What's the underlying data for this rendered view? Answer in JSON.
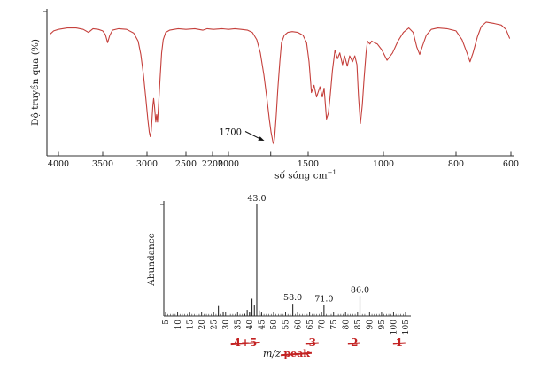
{
  "chart_data": [
    {
      "type": "line",
      "name": "ir-spectrum",
      "ylabel": "Độ truyền qua (%)",
      "xlabel": "số sóng cm",
      "xlabel_sup": "−1",
      "line_color": "#c5403c",
      "axis_color": "#333333",
      "xlim": [
        4100,
        600
      ],
      "ylim": [
        0,
        100
      ],
      "grid": false,
      "annotation": {
        "text": "1700"
      },
      "x_ticks": [
        {
          "v": 4000,
          "label": "4000"
        },
        {
          "v": 3500,
          "label": "3500"
        },
        {
          "v": 3000,
          "label": "3000"
        },
        {
          "v": 2500,
          "label": "2500"
        },
        {
          "v": 2200,
          "label": "2200"
        },
        {
          "v": 2000,
          "label": "2000"
        },
        {
          "v": 1735,
          "label": ""
        },
        {
          "v": 1500,
          "label": "1500"
        },
        {
          "v": 1000,
          "label": "1000"
        },
        {
          "v": 800,
          "label": "800"
        },
        {
          "v": 600,
          "label": "600"
        }
      ],
      "x_map": [
        [
          4100,
          57
        ],
        [
          4000,
          66
        ],
        [
          3500,
          116
        ],
        [
          3000,
          166
        ],
        [
          2500,
          210
        ],
        [
          2200,
          240
        ],
        [
          2000,
          258
        ],
        [
          1500,
          348
        ],
        [
          1000,
          433
        ],
        [
          800,
          515
        ],
        [
          600,
          577
        ]
      ],
      "points": [
        [
          4100,
          83
        ],
        [
          4060,
          85
        ],
        [
          4000,
          86
        ],
        [
          3900,
          87
        ],
        [
          3800,
          87
        ],
        [
          3720,
          86
        ],
        [
          3660,
          84
        ],
        [
          3610,
          86.5
        ],
        [
          3550,
          86
        ],
        [
          3500,
          85
        ],
        [
          3470,
          82.5
        ],
        [
          3445,
          77
        ],
        [
          3420,
          82
        ],
        [
          3390,
          85.5
        ],
        [
          3320,
          86.5
        ],
        [
          3230,
          86
        ],
        [
          3150,
          83.5
        ],
        [
          3100,
          78
        ],
        [
          3070,
          69
        ],
        [
          3040,
          55
        ],
        [
          3010,
          37
        ],
        [
          2990,
          25
        ],
        [
          2970,
          16
        ],
        [
          2958,
          13
        ],
        [
          2945,
          17
        ],
        [
          2925,
          34
        ],
        [
          2915,
          39
        ],
        [
          2905,
          34
        ],
        [
          2888,
          23
        ],
        [
          2876,
          28
        ],
        [
          2865,
          23
        ],
        [
          2852,
          34
        ],
        [
          2833,
          52
        ],
        [
          2813,
          70
        ],
        [
          2792,
          79
        ],
        [
          2760,
          84
        ],
        [
          2710,
          85.5
        ],
        [
          2600,
          86.5
        ],
        [
          2500,
          86
        ],
        [
          2400,
          86.5
        ],
        [
          2310,
          85.5
        ],
        [
          2260,
          86.5
        ],
        [
          2190,
          86
        ],
        [
          2080,
          86.5
        ],
        [
          2000,
          86
        ],
        [
          1960,
          86.5
        ],
        [
          1920,
          86
        ],
        [
          1880,
          85.5
        ],
        [
          1850,
          84
        ],
        [
          1822,
          79
        ],
        [
          1800,
          70
        ],
        [
          1778,
          55
        ],
        [
          1760,
          40
        ],
        [
          1744,
          25
        ],
        [
          1733,
          16
        ],
        [
          1722,
          10
        ],
        [
          1716,
          8
        ],
        [
          1710,
          13
        ],
        [
          1700,
          28
        ],
        [
          1690,
          46
        ],
        [
          1678,
          64
        ],
        [
          1667,
          77
        ],
        [
          1650,
          82
        ],
        [
          1628,
          84
        ],
        [
          1600,
          84.5
        ],
        [
          1565,
          84
        ],
        [
          1532,
          82
        ],
        [
          1510,
          77
        ],
        [
          1494,
          64
        ],
        [
          1478,
          43
        ],
        [
          1461,
          48
        ],
        [
          1444,
          40
        ],
        [
          1422,
          47
        ],
        [
          1406,
          40
        ],
        [
          1394,
          46
        ],
        [
          1378,
          25
        ],
        [
          1366,
          29
        ],
        [
          1355,
          39
        ],
        [
          1339,
          58
        ],
        [
          1322,
          72
        ],
        [
          1305,
          66
        ],
        [
          1290,
          70
        ],
        [
          1272,
          62
        ],
        [
          1258,
          68
        ],
        [
          1240,
          61
        ],
        [
          1224,
          68
        ],
        [
          1205,
          64
        ],
        [
          1190,
          68
        ],
        [
          1176,
          62
        ],
        [
          1165,
          40
        ],
        [
          1153,
          22
        ],
        [
          1140,
          35
        ],
        [
          1129,
          52
        ],
        [
          1115,
          70
        ],
        [
          1106,
          78
        ],
        [
          1090,
          76
        ],
        [
          1078,
          78
        ],
        [
          1060,
          77
        ],
        [
          1040,
          76
        ],
        [
          1010,
          72
        ],
        [
          990,
          65
        ],
        [
          975,
          70
        ],
        [
          960,
          78
        ],
        [
          945,
          84
        ],
        [
          930,
          87
        ],
        [
          918,
          84
        ],
        [
          908,
          74
        ],
        [
          900,
          69
        ],
        [
          892,
          75
        ],
        [
          882,
          82
        ],
        [
          868,
          86
        ],
        [
          850,
          87
        ],
        [
          825,
          86.5
        ],
        [
          800,
          85
        ],
        [
          778,
          79
        ],
        [
          760,
          70
        ],
        [
          749,
          64
        ],
        [
          738,
          70
        ],
        [
          722,
          81
        ],
        [
          708,
          88
        ],
        [
          690,
          91
        ],
        [
          660,
          90
        ],
        [
          635,
          89
        ],
        [
          618,
          86
        ],
        [
          605,
          80
        ]
      ]
    },
    {
      "type": "bar",
      "name": "mass-spectrum",
      "ylabel": "Abundance",
      "xlabel": "m/z",
      "xlabel_struck": "peak",
      "bar_color": "#2a2a2a",
      "axis_color": "#333333",
      "annotation_color": "#c32222",
      "x_axis": {
        "start": 5,
        "end": 105,
        "major_step": 5,
        "minor_step": 1
      },
      "ylim": [
        0,
        100
      ],
      "grid": false,
      "peaks": [
        [
          15,
          2.5
        ],
        [
          27,
          9
        ],
        [
          29,
          4
        ],
        [
          38,
          2
        ],
        [
          39,
          5.5
        ],
        [
          40,
          3
        ],
        [
          41,
          15.5
        ],
        [
          42,
          9.5
        ],
        [
          43,
          100
        ],
        [
          44,
          5
        ],
        [
          45,
          2
        ],
        [
          58,
          11
        ],
        [
          71,
          10
        ],
        [
          86,
          18
        ]
      ],
      "peak_labels": [
        {
          "m": 43,
          "text": "43.0"
        },
        {
          "m": 58,
          "text": "58.0"
        },
        {
          "m": 71,
          "text": "71.0"
        },
        {
          "m": 86,
          "text": "86.0"
        }
      ],
      "red_marks": [
        {
          "text": "4+5"
        },
        {
          "text": "3"
        },
        {
          "text": "2"
        },
        {
          "text": "1"
        }
      ]
    }
  ]
}
